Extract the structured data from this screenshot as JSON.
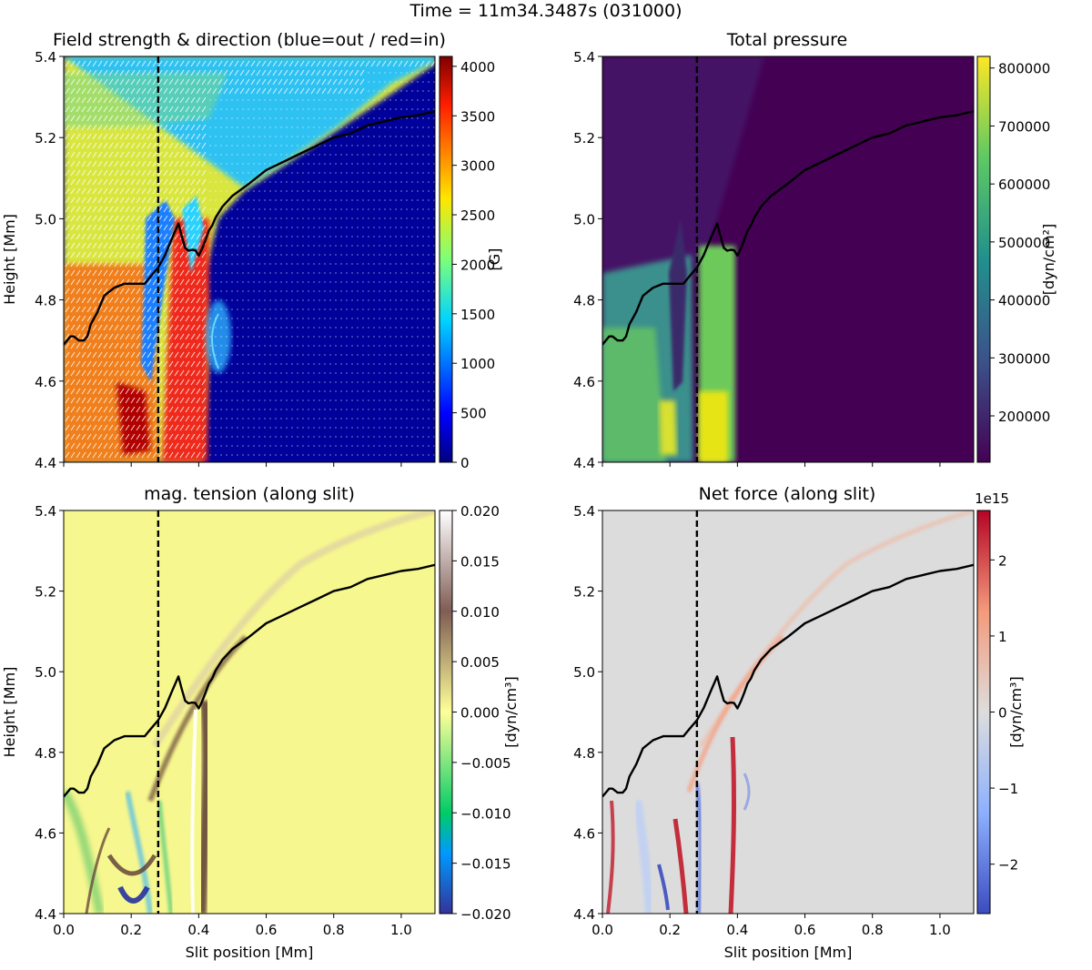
{
  "figure": {
    "suptitle": "Time = 11m34.3487s (031000)"
  },
  "chart_data": [
    {
      "type": "heatmap",
      "title": "Field strength & direction (blue=out / red=in)",
      "xlabel": "",
      "ylabel": "Height [Mm]",
      "xlim": [
        0.0,
        1.1
      ],
      "ylim": [
        4.4,
        5.4
      ],
      "xticks": [
        0.0,
        0.2,
        0.4,
        0.6,
        0.8,
        1.0
      ],
      "yticks": [
        4.4,
        4.6,
        4.8,
        5.0,
        5.2,
        5.4
      ],
      "yticklabels": [
        "4.4",
        "4.6",
        "4.8",
        "5.0",
        "5.2",
        "5.4"
      ],
      "colorbar": {
        "label": "[G]",
        "range": [
          0,
          4100
        ],
        "ticks": [
          0,
          500,
          1000,
          1500,
          2000,
          2500,
          3000,
          3500,
          4000
        ],
        "ticklabels": [
          "0",
          "500",
          "1000",
          "1500",
          "2000",
          "2500",
          "3000",
          "3500",
          "4000"
        ],
        "colormap": "jet"
      },
      "annotations": [
        "white tick marks show field direction",
        "dashed vertical line at slit position 0.28 Mm",
        "black curve: boundary height"
      ]
    },
    {
      "type": "heatmap",
      "title": "Total pressure",
      "xlabel": "",
      "ylabel": "",
      "xlim": [
        0.0,
        1.1
      ],
      "ylim": [
        4.4,
        5.4
      ],
      "xticks": [
        0.0,
        0.2,
        0.4,
        0.6,
        0.8,
        1.0
      ],
      "yticks": [
        4.4,
        4.6,
        4.8,
        5.0,
        5.2,
        5.4
      ],
      "yticklabels": [
        "4.4",
        "4.6",
        "4.8",
        "5.0",
        "5.2",
        "5.4"
      ],
      "colorbar": {
        "label": "[dyn/cm²]",
        "range": [
          120000,
          820000
        ],
        "ticks": [
          200000,
          300000,
          400000,
          500000,
          600000,
          700000,
          800000
        ],
        "ticklabels": [
          "200000",
          "300000",
          "400000",
          "500000",
          "600000",
          "700000",
          "800000"
        ],
        "colormap": "viridis"
      }
    },
    {
      "type": "heatmap",
      "title": "mag. tension (along slit)",
      "xlabel": "Slit position [Mm]",
      "ylabel": "Height [Mm]",
      "xlim": [
        0.0,
        1.1
      ],
      "ylim": [
        4.4,
        5.4
      ],
      "xticks": [
        0.0,
        0.2,
        0.4,
        0.6,
        0.8,
        1.0
      ],
      "xticklabels": [
        "0.0",
        "0.2",
        "0.4",
        "0.6",
        "0.8",
        "1.0"
      ],
      "yticks": [
        4.4,
        4.6,
        4.8,
        5.0,
        5.2,
        5.4
      ],
      "yticklabels": [
        "4.4",
        "4.6",
        "4.8",
        "5.0",
        "5.2",
        "5.4"
      ],
      "colorbar": {
        "label": "[dyn/cm³]",
        "range": [
          -0.02,
          0.02
        ],
        "ticks": [
          -0.02,
          -0.015,
          -0.01,
          -0.005,
          0.0,
          0.005,
          0.01,
          0.015,
          0.02
        ],
        "ticklabels": [
          "−0.020",
          "−0.015",
          "−0.010",
          "−0.005",
          "0.000",
          "0.005",
          "0.010",
          "0.015",
          "0.020"
        ],
        "colormap": "terrain"
      }
    },
    {
      "type": "heatmap",
      "title": "Net force (along slit)",
      "xlabel": "Slit position [Mm]",
      "ylabel": "",
      "xlim": [
        0.0,
        1.1
      ],
      "ylim": [
        4.4,
        5.4
      ],
      "xticks": [
        0.0,
        0.2,
        0.4,
        0.6,
        0.8,
        1.0
      ],
      "xticklabels": [
        "0.0",
        "0.2",
        "0.4",
        "0.6",
        "0.8",
        "1.0"
      ],
      "yticks": [
        4.4,
        4.6,
        4.8,
        5.0,
        5.2,
        5.4
      ],
      "yticklabels": [
        "4.4",
        "4.6",
        "4.8",
        "5.0",
        "5.2",
        "5.4"
      ],
      "colorbar": {
        "label": "[dyn/cm³]",
        "range": [
          -2.65,
          2.65
        ],
        "ticks": [
          -2,
          -1,
          0,
          1,
          2
        ],
        "ticklabels": [
          "−2",
          "−1",
          "0",
          "1",
          "2"
        ],
        "offset": "1e15",
        "colormap": "coolwarm"
      }
    }
  ],
  "overlays": {
    "slit_marker_x": 0.28,
    "boundary_curve": {
      "x": [
        0.0,
        0.01,
        0.02,
        0.03,
        0.045,
        0.06,
        0.07,
        0.08,
        0.1,
        0.12,
        0.15,
        0.18,
        0.2,
        0.22,
        0.24,
        0.26,
        0.28,
        0.3,
        0.32,
        0.34,
        0.35,
        0.36,
        0.37,
        0.38,
        0.39,
        0.4,
        0.41,
        0.42,
        0.43,
        0.44,
        0.45,
        0.47,
        0.5,
        0.55,
        0.6,
        0.65,
        0.7,
        0.75,
        0.8,
        0.85,
        0.9,
        0.95,
        1.0,
        1.05,
        1.1
      ],
      "y": [
        4.69,
        4.7,
        4.71,
        4.71,
        4.7,
        4.7,
        4.71,
        4.74,
        4.77,
        4.81,
        4.83,
        4.84,
        4.84,
        4.84,
        4.84,
        4.86,
        4.88,
        4.91,
        4.95,
        4.99,
        4.96,
        4.93,
        4.92,
        4.92,
        4.92,
        4.91,
        4.93,
        4.95,
        4.97,
        4.98,
        5.0,
        5.03,
        5.06,
        5.09,
        5.12,
        5.14,
        5.16,
        5.18,
        5.2,
        5.21,
        5.23,
        5.24,
        5.25,
        5.255,
        5.265
      ]
    }
  }
}
